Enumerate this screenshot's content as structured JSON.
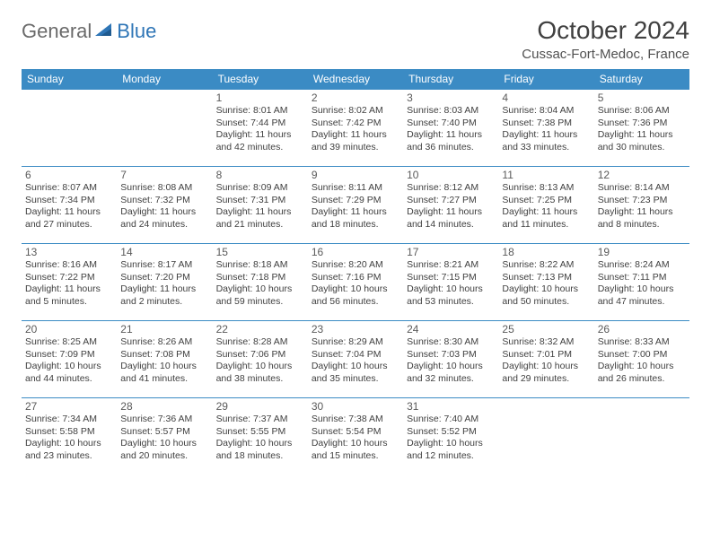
{
  "logo": {
    "general": "General",
    "blue": "Blue"
  },
  "title": "October 2024",
  "location": "Cussac-Fort-Medoc, France",
  "colors": {
    "header_bg": "#3b8bc4",
    "header_text": "#ffffff",
    "border": "#3b8bc4",
    "logo_gray": "#6a6a6a",
    "logo_blue": "#2e75b6"
  },
  "day_names": [
    "Sunday",
    "Monday",
    "Tuesday",
    "Wednesday",
    "Thursday",
    "Friday",
    "Saturday"
  ],
  "weeks": [
    [
      null,
      null,
      {
        "n": "1",
        "sr": "8:01 AM",
        "ss": "7:44 PM",
        "dl": "11 hours and 42 minutes."
      },
      {
        "n": "2",
        "sr": "8:02 AM",
        "ss": "7:42 PM",
        "dl": "11 hours and 39 minutes."
      },
      {
        "n": "3",
        "sr": "8:03 AM",
        "ss": "7:40 PM",
        "dl": "11 hours and 36 minutes."
      },
      {
        "n": "4",
        "sr": "8:04 AM",
        "ss": "7:38 PM",
        "dl": "11 hours and 33 minutes."
      },
      {
        "n": "5",
        "sr": "8:06 AM",
        "ss": "7:36 PM",
        "dl": "11 hours and 30 minutes."
      }
    ],
    [
      {
        "n": "6",
        "sr": "8:07 AM",
        "ss": "7:34 PM",
        "dl": "11 hours and 27 minutes."
      },
      {
        "n": "7",
        "sr": "8:08 AM",
        "ss": "7:32 PM",
        "dl": "11 hours and 24 minutes."
      },
      {
        "n": "8",
        "sr": "8:09 AM",
        "ss": "7:31 PM",
        "dl": "11 hours and 21 minutes."
      },
      {
        "n": "9",
        "sr": "8:11 AM",
        "ss": "7:29 PM",
        "dl": "11 hours and 18 minutes."
      },
      {
        "n": "10",
        "sr": "8:12 AM",
        "ss": "7:27 PM",
        "dl": "11 hours and 14 minutes."
      },
      {
        "n": "11",
        "sr": "8:13 AM",
        "ss": "7:25 PM",
        "dl": "11 hours and 11 minutes."
      },
      {
        "n": "12",
        "sr": "8:14 AM",
        "ss": "7:23 PM",
        "dl": "11 hours and 8 minutes."
      }
    ],
    [
      {
        "n": "13",
        "sr": "8:16 AM",
        "ss": "7:22 PM",
        "dl": "11 hours and 5 minutes."
      },
      {
        "n": "14",
        "sr": "8:17 AM",
        "ss": "7:20 PM",
        "dl": "11 hours and 2 minutes."
      },
      {
        "n": "15",
        "sr": "8:18 AM",
        "ss": "7:18 PM",
        "dl": "10 hours and 59 minutes."
      },
      {
        "n": "16",
        "sr": "8:20 AM",
        "ss": "7:16 PM",
        "dl": "10 hours and 56 minutes."
      },
      {
        "n": "17",
        "sr": "8:21 AM",
        "ss": "7:15 PM",
        "dl": "10 hours and 53 minutes."
      },
      {
        "n": "18",
        "sr": "8:22 AM",
        "ss": "7:13 PM",
        "dl": "10 hours and 50 minutes."
      },
      {
        "n": "19",
        "sr": "8:24 AM",
        "ss": "7:11 PM",
        "dl": "10 hours and 47 minutes."
      }
    ],
    [
      {
        "n": "20",
        "sr": "8:25 AM",
        "ss": "7:09 PM",
        "dl": "10 hours and 44 minutes."
      },
      {
        "n": "21",
        "sr": "8:26 AM",
        "ss": "7:08 PM",
        "dl": "10 hours and 41 minutes."
      },
      {
        "n": "22",
        "sr": "8:28 AM",
        "ss": "7:06 PM",
        "dl": "10 hours and 38 minutes."
      },
      {
        "n": "23",
        "sr": "8:29 AM",
        "ss": "7:04 PM",
        "dl": "10 hours and 35 minutes."
      },
      {
        "n": "24",
        "sr": "8:30 AM",
        "ss": "7:03 PM",
        "dl": "10 hours and 32 minutes."
      },
      {
        "n": "25",
        "sr": "8:32 AM",
        "ss": "7:01 PM",
        "dl": "10 hours and 29 minutes."
      },
      {
        "n": "26",
        "sr": "8:33 AM",
        "ss": "7:00 PM",
        "dl": "10 hours and 26 minutes."
      }
    ],
    [
      {
        "n": "27",
        "sr": "7:34 AM",
        "ss": "5:58 PM",
        "dl": "10 hours and 23 minutes."
      },
      {
        "n": "28",
        "sr": "7:36 AM",
        "ss": "5:57 PM",
        "dl": "10 hours and 20 minutes."
      },
      {
        "n": "29",
        "sr": "7:37 AM",
        "ss": "5:55 PM",
        "dl": "10 hours and 18 minutes."
      },
      {
        "n": "30",
        "sr": "7:38 AM",
        "ss": "5:54 PM",
        "dl": "10 hours and 15 minutes."
      },
      {
        "n": "31",
        "sr": "7:40 AM",
        "ss": "5:52 PM",
        "dl": "10 hours and 12 minutes."
      },
      null,
      null
    ]
  ],
  "labels": {
    "sunrise": "Sunrise:",
    "sunset": "Sunset:",
    "daylight": "Daylight:"
  }
}
